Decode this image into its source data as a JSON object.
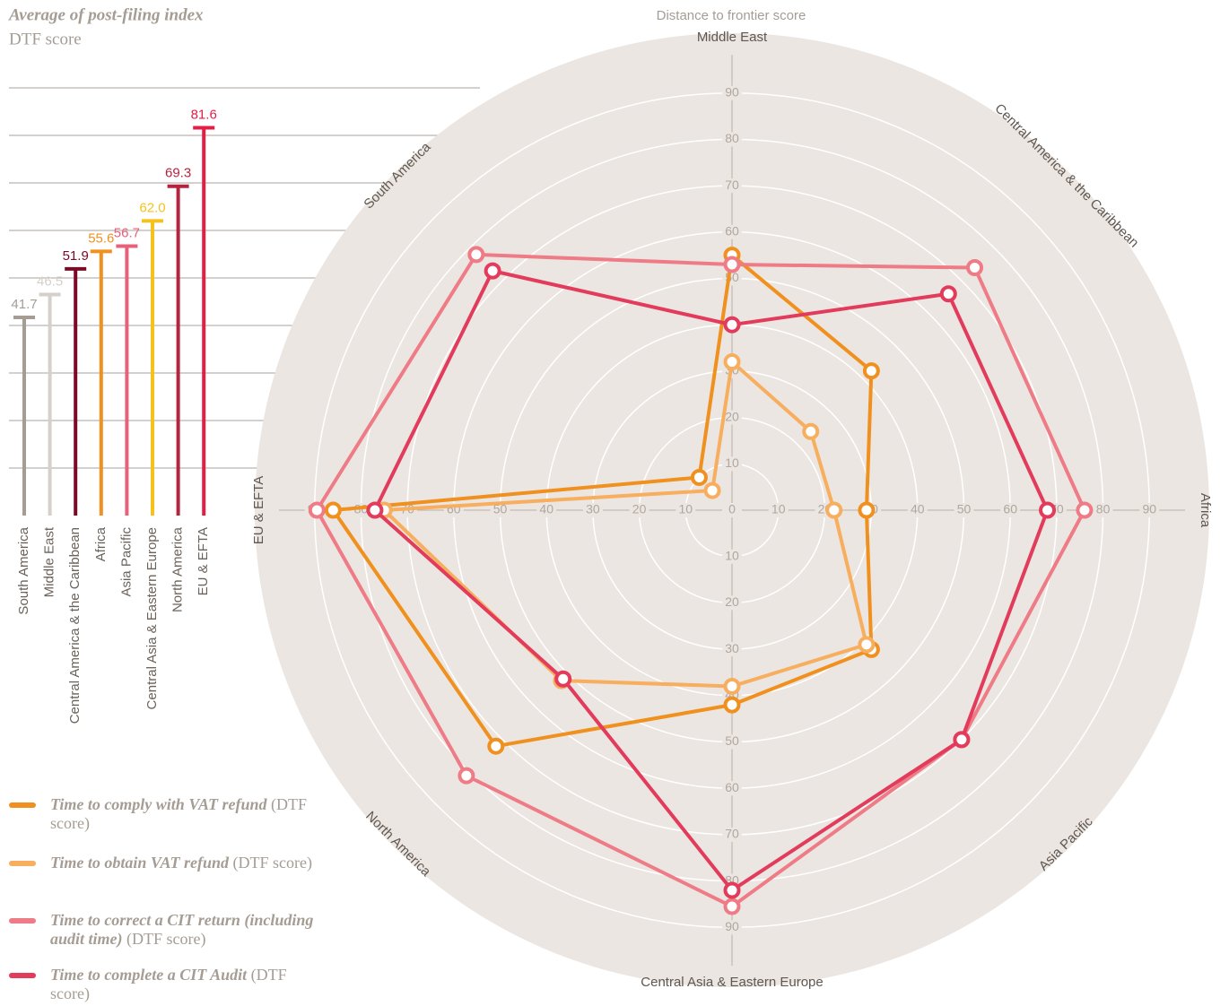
{
  "chart_data": [
    {
      "type": "bar",
      "title": "Average of post-filing index",
      "subtitle": "DTF score",
      "categories": [
        "South America",
        "Middle East",
        "Central America & the Caribbean",
        "Africa",
        "Asia Pacific",
        "Central Asia & Eastern Europe",
        "North America",
        "EU & EFTA"
      ],
      "values": [
        41.7,
        46.5,
        51.9,
        55.6,
        56.7,
        62,
        69.3,
        81.6
      ],
      "value_labels": [
        "41.7",
        "46.5",
        "51.9",
        "55.6",
        "56.7",
        "62.0",
        "69.3",
        "81.6"
      ],
      "colors": [
        "#a59d94",
        "#d6d0ca",
        "#7a0a25",
        "#f0901e",
        "#e8607a",
        "#f5c21b",
        "#b5243f",
        "#e41d46"
      ],
      "ylim": [
        0,
        90
      ],
      "yticks": [
        10,
        20,
        30,
        40,
        50,
        60,
        70,
        80,
        90
      ],
      "grid": true
    },
    {
      "type": "radar",
      "title": "Distance to frontier score",
      "categories": [
        "Middle East",
        "Central America & the Caribbean",
        "Africa",
        "Asia Pacific",
        "Central Asia & Eastern Europe",
        "North America",
        "EU & EFTA",
        "South America"
      ],
      "rlim": [
        0,
        100
      ],
      "rticks": [
        0,
        10,
        20,
        30,
        40,
        50,
        60,
        70,
        80,
        90
      ],
      "legend_note": "(DTF score)",
      "series": [
        {
          "name": "Time to comply with VAT refund",
          "color": "#f0901e",
          "values": [
            55,
            42.5,
            29,
            42.5,
            42,
            72,
            86,
            10
          ]
        },
        {
          "name": "Time to obtain VAT refund",
          "color": "#f7ae5f",
          "values": [
            32,
            24,
            22,
            41,
            38,
            52,
            75,
            6
          ]
        },
        {
          "name": "Time to correct a CIT return (including audit time)",
          "color": "#ef7b86",
          "values": [
            53,
            74,
            76,
            70,
            85.5,
            81,
            89.5,
            78
          ]
        },
        {
          "name": "Time to complete a CIT Audit",
          "color": "#e23b5b",
          "values": [
            40,
            66,
            68,
            70,
            82,
            51.5,
            77,
            73
          ]
        }
      ]
    }
  ]
}
